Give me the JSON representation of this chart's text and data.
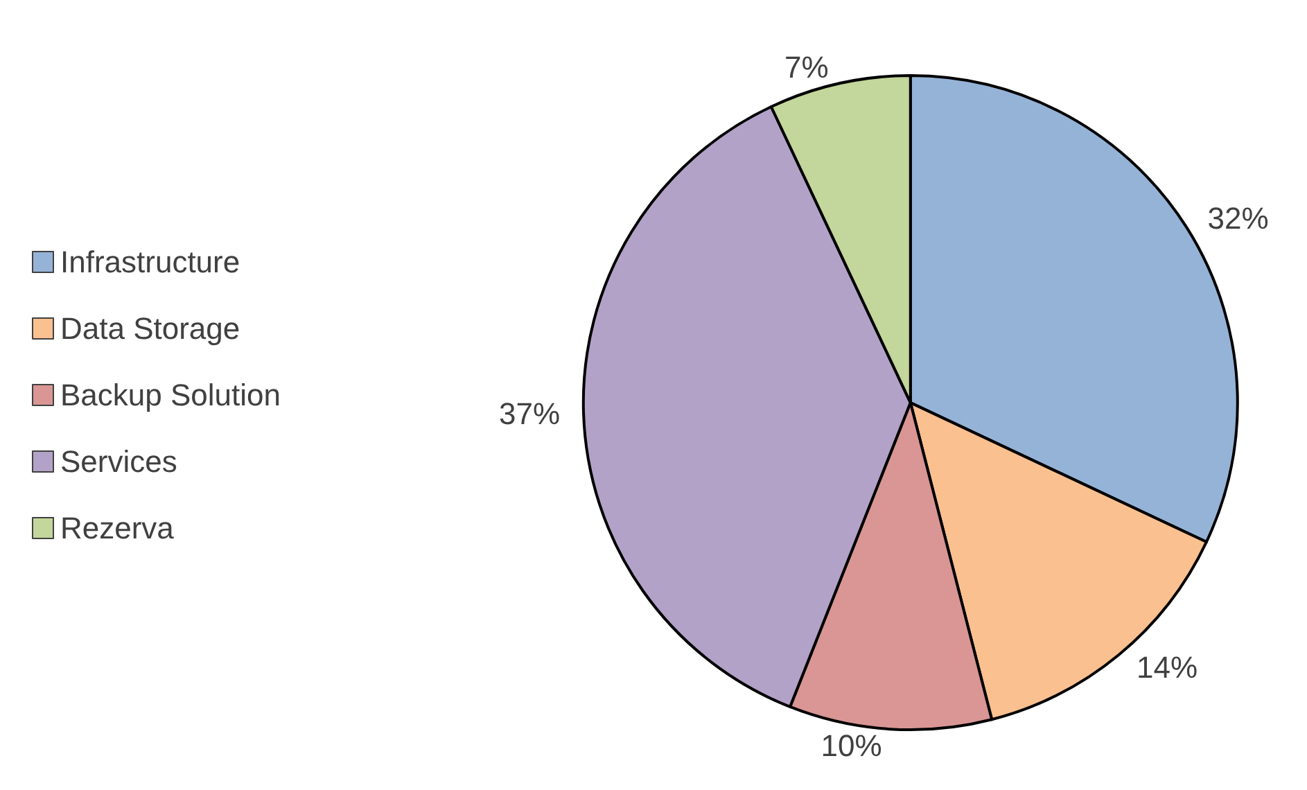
{
  "chart_data": {
    "type": "pie",
    "categories": [
      "Infrastructure",
      "Data Storage",
      "Backup Solution",
      "Services",
      "Rezerva"
    ],
    "values": [
      32,
      14,
      10,
      37,
      7
    ],
    "value_labels": [
      "32%",
      "14%",
      "10%",
      "37%",
      "7%"
    ],
    "colors": [
      "#95b3d7",
      "#fac090",
      "#d99694",
      "#b3a2c7",
      "#c3d69b"
    ],
    "legend": "left"
  }
}
